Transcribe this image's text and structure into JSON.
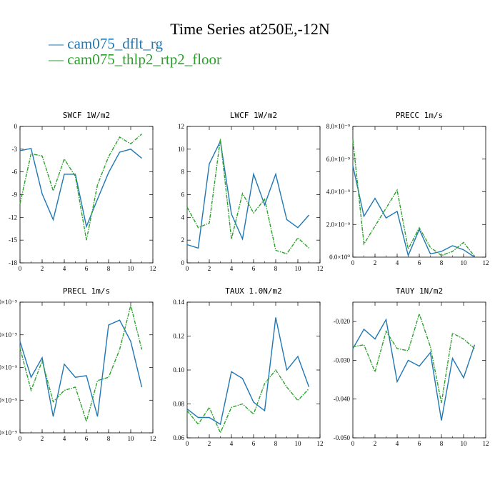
{
  "title": "Time Series at250E,-12N",
  "legend": [
    {
      "name": "cam075_dflt_rg",
      "color": "#1f77b4",
      "dash": false
    },
    {
      "name": "cam075_thlp2_rtp2_floor",
      "color": "#2ca02c",
      "dash": true
    }
  ],
  "chart_data": [
    {
      "type": "line",
      "title": "SWCF  1W/m2",
      "x": [
        0,
        1,
        2,
        3,
        4,
        5,
        6,
        7,
        8,
        9,
        10,
        11
      ],
      "xlim": [
        0,
        12
      ],
      "ylim": [
        -18,
        0
      ],
      "xticks": [
        "0",
        "2",
        "4",
        "6",
        "8",
        "10",
        "12"
      ],
      "yticks": [
        "0",
        "-3",
        "-6",
        "-9",
        "-12",
        "-15",
        "-18"
      ],
      "series": [
        {
          "name": "cam075_dflt_rg",
          "values": [
            -3.2,
            -2.9,
            -8.9,
            -12.3,
            -6.3,
            -6.3,
            -13.2,
            -9.6,
            -6.1,
            -3.4,
            -3.0,
            -4.2
          ]
        },
        {
          "name": "cam075_thlp2_rtp2_floor",
          "values": [
            -10.2,
            -3.6,
            -3.9,
            -8.5,
            -4.3,
            -6.6,
            -15.0,
            -7.7,
            -4.0,
            -1.4,
            -2.3,
            -1.0
          ]
        }
      ]
    },
    {
      "type": "line",
      "title": "LWCF  1W/m2",
      "x": [
        0,
        1,
        2,
        3,
        4,
        5,
        6,
        7,
        8,
        9,
        10,
        11
      ],
      "xlim": [
        0,
        12
      ],
      "ylim": [
        0,
        12
      ],
      "xticks": [
        "0",
        "2",
        "4",
        "6",
        "8",
        "10",
        "12"
      ],
      "yticks": [
        "0",
        "2",
        "4",
        "6",
        "8",
        "10",
        "12"
      ],
      "series": [
        {
          "name": "cam075_dflt_rg",
          "values": [
            1.6,
            1.3,
            8.7,
            10.7,
            4.3,
            2.1,
            7.8,
            5.1,
            7.8,
            3.8,
            3.1,
            4.2
          ]
        },
        {
          "name": "cam075_thlp2_rtp2_floor",
          "values": [
            4.9,
            3.1,
            3.5,
            10.9,
            2.1,
            6.1,
            4.4,
            5.6,
            1.1,
            0.8,
            2.2,
            1.3
          ]
        }
      ]
    },
    {
      "type": "line",
      "title": "PRECC  1m/s",
      "x": [
        0,
        1,
        2,
        3,
        4,
        5,
        6,
        7,
        8,
        9,
        10,
        11
      ],
      "xlim": [
        0,
        12
      ],
      "ylim": [
        0,
        8e-09
      ],
      "xticks": [
        "0",
        "2",
        "4",
        "6",
        "8",
        "10",
        "12"
      ],
      "yticks": [
        "0.0×10⁰",
        "2.0×10⁻⁹",
        "4.0×10⁻⁹",
        "6.0×10⁻⁹",
        "8.0×10⁻⁹"
      ],
      "series": [
        {
          "name": "cam075_dflt_rg",
          "values": [
            5.6e-09,
            2.5e-09,
            3.6e-09,
            2.4e-09,
            2.8e-09,
            1e-10,
            1.7e-09,
            2e-10,
            3.5e-10,
            7e-10,
            4.5e-10,
            0.0
          ]
        },
        {
          "name": "cam075_thlp2_rtp2_floor",
          "values": [
            7.2e-09,
            8e-10,
            1.9e-09,
            3e-09,
            4.1e-09,
            5e-10,
            1.8e-09,
            6e-10,
            1e-10,
            3.5e-10,
            9e-10,
            5e-11
          ]
        }
      ]
    },
    {
      "type": "line",
      "title": "PRECL  1m/s",
      "x": [
        0,
        1,
        2,
        3,
        4,
        5,
        6,
        7,
        8,
        9,
        10,
        11
      ],
      "xlim": [
        0,
        12
      ],
      "ylim": [
        0,
        4
      ],
      "xticks": [
        "0",
        "2",
        "4",
        "6",
        "8",
        "10",
        "12"
      ],
      "yticks": [
        "",
        "",
        "",
        "",
        ""
      ],
      "ytick_suffix": "×10⁻⁹",
      "series": [
        {
          "name": "cam075_dflt_rg",
          "values": [
            2.8,
            1.7,
            2.3,
            0.5,
            2.1,
            1.7,
            1.75,
            0.5,
            3.3,
            3.45,
            2.8,
            1.4
          ]
        },
        {
          "name": "cam075_thlp2_rtp2_floor",
          "values": [
            2.6,
            1.3,
            2.2,
            0.95,
            1.3,
            1.4,
            0.35,
            1.6,
            1.7,
            2.55,
            3.9,
            2.55
          ]
        }
      ]
    },
    {
      "type": "line",
      "title": "TAUX  1.0N/m2",
      "x": [
        0,
        1,
        2,
        3,
        4,
        5,
        6,
        7,
        8,
        9,
        10,
        11
      ],
      "xlim": [
        0,
        12
      ],
      "ylim": [
        0.06,
        0.14
      ],
      "xticks": [
        "0",
        "2",
        "4",
        "6",
        "8",
        "10",
        "12"
      ],
      "yticks": [
        "0.06",
        "0.08",
        "0.10",
        "0.12",
        "0.14"
      ],
      "series": [
        {
          "name": "cam075_dflt_rg",
          "values": [
            0.077,
            0.072,
            0.072,
            0.068,
            0.099,
            0.095,
            0.081,
            0.076,
            0.131,
            0.1,
            0.108,
            0.09
          ]
        },
        {
          "name": "cam075_thlp2_rtp2_floor",
          "values": [
            0.076,
            0.068,
            0.078,
            0.063,
            0.078,
            0.08,
            0.074,
            0.092,
            0.1,
            0.09,
            0.082,
            0.089
          ]
        }
      ]
    },
    {
      "type": "line",
      "title": "TAUY  1N/m2",
      "x": [
        0,
        1,
        2,
        3,
        4,
        5,
        6,
        7,
        8,
        9,
        10,
        11
      ],
      "xlim": [
        0,
        12
      ],
      "ylim": [
        -0.05,
        -0.015
      ],
      "xticks": [
        "0",
        "2",
        "4",
        "6",
        "8",
        "10",
        "12"
      ],
      "yticks": [
        "-0.020",
        "-0.030",
        "-0.040",
        "-0.050"
      ],
      "series": [
        {
          "name": "cam075_dflt_rg",
          "values": [
            -0.027,
            -0.022,
            -0.0245,
            -0.0195,
            -0.0355,
            -0.03,
            -0.0315,
            -0.028,
            -0.0455,
            -0.0295,
            -0.0345,
            -0.026
          ]
        },
        {
          "name": "cam075_thlp2_rtp2_floor",
          "values": [
            -0.0265,
            -0.026,
            -0.033,
            -0.0225,
            -0.027,
            -0.0275,
            -0.018,
            -0.0265,
            -0.041,
            -0.023,
            -0.0245,
            -0.027
          ]
        }
      ]
    }
  ]
}
